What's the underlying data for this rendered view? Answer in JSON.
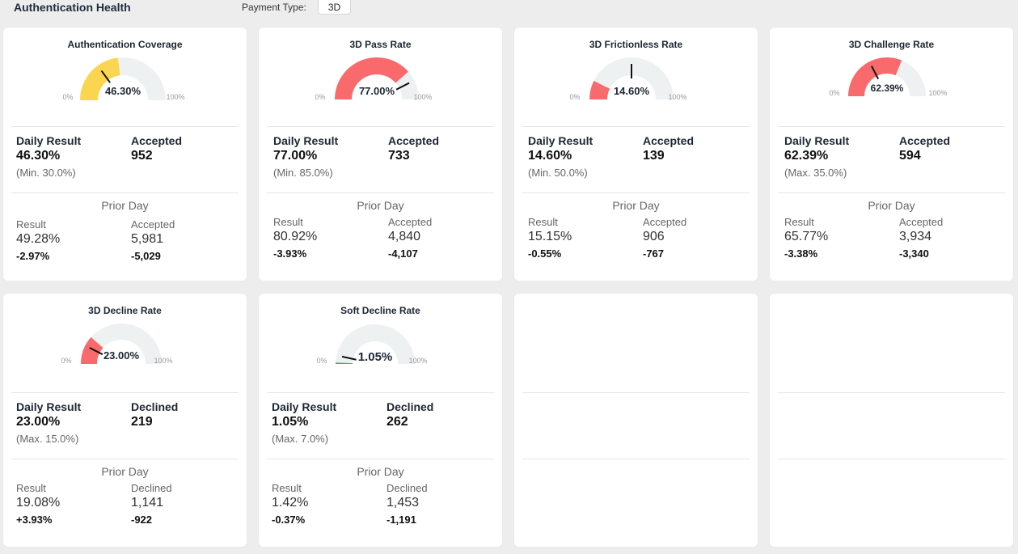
{
  "header": {
    "title": "Authentication Health",
    "payment_type_label": "Payment Type:",
    "payment_type_value": "3D"
  },
  "labels": {
    "daily_result": "Daily Result",
    "prior_day": "Prior Day",
    "result": "Result",
    "gauge_min": "0%",
    "gauge_max": "100%"
  },
  "colors": {
    "yellow": "#fad54f",
    "red": "#f96a6c",
    "green": "#56a554",
    "track": "#eef1f2",
    "needle": "#111111"
  },
  "cards": [
    {
      "title": "Authentication Coverage",
      "gauge_value": "46.30%",
      "gauge_fraction": 0.463,
      "gauge_color": "yellow",
      "needle_fraction": 0.3,
      "daily_value": "46.30%",
      "threshold": "(Min. 30.0%)",
      "count_label": "Accepted",
      "count_value": "952",
      "prior_result": "49.28%",
      "prior_result_delta": "-2.97%",
      "prior_count_label": "Accepted",
      "prior_count": "5,981",
      "prior_count_delta": "-5,029"
    },
    {
      "title": "3D Pass Rate",
      "gauge_value": "77.00%",
      "gauge_fraction": 0.77,
      "gauge_color": "red",
      "needle_fraction": 0.85,
      "daily_value": "77.00%",
      "threshold": "(Min. 85.0%)",
      "count_label": "Accepted",
      "count_value": "733",
      "prior_result": "80.92%",
      "prior_result_delta": "-3.93%",
      "prior_count_label": "Accepted",
      "prior_count": "4,840",
      "prior_count_delta": "-4,107"
    },
    {
      "title": "3D Frictionless Rate",
      "gauge_value": "14.60%",
      "gauge_fraction": 0.146,
      "gauge_color": "red",
      "needle_fraction": 0.5,
      "daily_value": "14.60%",
      "threshold": "(Min. 50.0%)",
      "count_label": "Accepted",
      "count_value": "139",
      "prior_result": "15.15%",
      "prior_result_delta": "-0.55%",
      "prior_count_label": "Accepted",
      "prior_count": "906",
      "prior_count_delta": "-767"
    },
    {
      "title": "3D Challenge Rate",
      "gauge_value": "62.39%",
      "gauge_fraction": 0.6239,
      "gauge_color": "red",
      "needle_fraction": 0.35,
      "daily_value": "62.39%",
      "threshold": "(Max. 35.0%)",
      "count_label": "Accepted",
      "count_value": "594",
      "prior_result": "65.77%",
      "prior_result_delta": "-3.38%",
      "prior_count_label": "Accepted",
      "prior_count": "3,934",
      "prior_count_delta": "-3,340"
    },
    {
      "title": "3D Decline Rate",
      "gauge_value": "23.00%",
      "gauge_fraction": 0.23,
      "gauge_color": "red",
      "needle_fraction": 0.15,
      "daily_value": "23.00%",
      "threshold": "(Max. 15.0%)",
      "count_label": "Declined",
      "count_value": "219",
      "prior_result": "19.08%",
      "prior_result_delta": "+3.93%",
      "prior_count_label": "Declined",
      "prior_count": "1,141",
      "prior_count_delta": "-922"
    },
    {
      "title": "Soft Decline Rate",
      "gauge_value": "1.05%",
      "gauge_fraction": 0.0105,
      "gauge_color": "green",
      "needle_fraction": 0.07,
      "daily_value": "1.05%",
      "threshold": "(Max. 7.0%)",
      "count_label": "Declined",
      "count_value": "262",
      "prior_result": "1.42%",
      "prior_result_delta": "-0.37%",
      "prior_count_label": "Declined",
      "prior_count": "1,453",
      "prior_count_delta": "-1,191"
    }
  ]
}
